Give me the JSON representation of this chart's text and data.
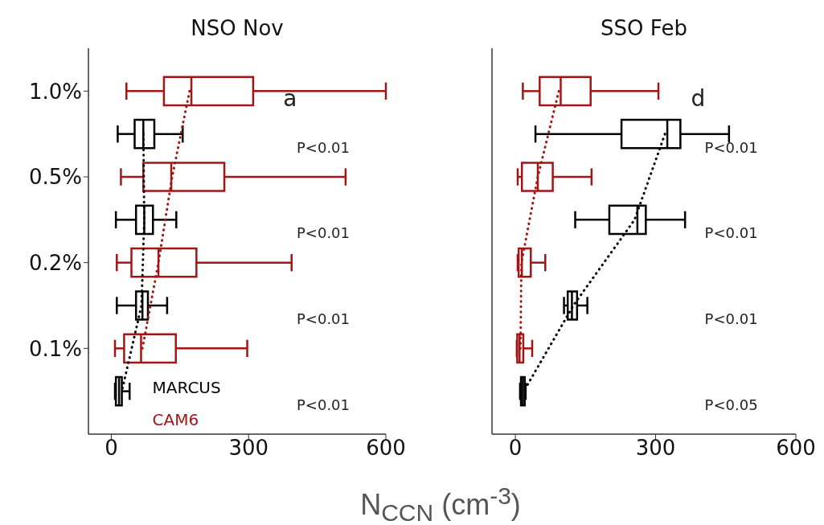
{
  "chart_data": [
    {
      "type": "box",
      "title": "NSO Nov",
      "xlabel": "N$_{CCN}$ (cm$^{-3}$)",
      "orientation": "horizontal",
      "categories": [
        "1.0%",
        null,
        "0.5%",
        null,
        "0.2%",
        null,
        "0.1%",
        null
      ],
      "xlim": [
        -50,
        600
      ],
      "xticks": [
        0,
        300,
        600
      ],
      "legend": "bottom",
      "annotations": [
        "a",
        "P<0.01",
        "P<0.01",
        "P<0.01",
        "P<0.01"
      ],
      "series": [
        {
          "name": "CAM6",
          "color": "#a31515",
          "boxes": [
            {
              "low": 33,
              "q1": 115,
              "median": 175,
              "q3": 310,
              "high": 600
            },
            null,
            {
              "low": 21,
              "q1": 70,
              "median": 131,
              "q3": 247,
              "high": 512
            },
            null,
            {
              "low": 12,
              "q1": 44,
              "median": 103,
              "q3": 186,
              "high": 394
            },
            null,
            {
              "low": 8,
              "q1": 28,
              "median": 65,
              "q3": 141,
              "high": 297
            },
            null
          ]
        },
        {
          "name": "MARCUS",
          "color": "#000000",
          "boxes": [
            null,
            {
              "low": 14,
              "q1": 51,
              "median": 70,
              "q3": 94,
              "high": 156
            },
            null,
            {
              "low": 10,
              "q1": 54,
              "median": 72,
              "q3": 91,
              "high": 142
            },
            null,
            {
              "low": 12,
              "q1": 54,
              "median": 68,
              "q3": 80,
              "high": 122
            },
            null,
            {
              "low": 8,
              "q1": 10,
              "median": 17,
              "q3": 23,
              "high": 40
            }
          ]
        },
        {
          "type": "line",
          "color": "#a31515",
          "line_style": "dotted",
          "values": [
            171,
            null,
            133,
            null,
            103,
            null,
            68,
            null
          ]
        },
        {
          "type": "line",
          "color": "#000000",
          "line_style": "dotted",
          "values": [
            null,
            70,
            null,
            72,
            null,
            66,
            null,
            23
          ]
        }
      ]
    },
    {
      "type": "box",
      "title": "SSO Feb",
      "orientation": "horizontal",
      "categories": [
        null,
        null,
        null,
        null,
        null,
        null,
        null,
        null
      ],
      "xlim": [
        -50,
        600
      ],
      "xticks": [
        0,
        300,
        600
      ],
      "tick_labels": "x",
      "annotations": [
        "d",
        "P<0.01",
        "P<0.01",
        "P<0.01",
        "P<0.05"
      ],
      "series": [
        {
          "color": "#a31515",
          "boxes": [
            {
              "low": 16,
              "q1": 52,
              "median": 97,
              "q3": 161,
              "high": 306
            },
            null,
            {
              "low": 5,
              "q1": 14,
              "median": 48,
              "q3": 80,
              "high": 163
            },
            null,
            {
              "low": 5,
              "q1": 7,
              "median": 14,
              "q3": 33,
              "high": 64
            },
            null,
            {
              "low": 3,
              "q1": 4,
              "median": 9,
              "q3": 17,
              "high": 36
            },
            null
          ]
        },
        {
          "color": "#000000",
          "boxes": [
            null,
            {
              "low": 43,
              "q1": 227,
              "median": 325,
              "q3": 353,
              "high": 457
            },
            null,
            {
              "low": 128,
              "q1": 201,
              "median": 261,
              "q3": 279,
              "high": 363
            },
            null,
            {
              "low": 104,
              "q1": 112,
              "median": 121,
              "q3": 132,
              "high": 154
            },
            null,
            {
              "low": 10,
              "q1": 12,
              "median": 16,
              "q3": 20,
              "high": 22
            }
          ]
        },
        {
          "type": "line",
          "color": "#a31515",
          "line_style": "dotted",
          "values": [
            93,
            null,
            48,
            null,
            13,
            null,
            11,
            null
          ]
        },
        {
          "type": "line",
          "color": "#000000",
          "line_style": "dotted",
          "values": [
            null,
            320,
            null,
            255,
            null,
            124,
            null,
            18
          ]
        }
      ]
    }
  ]
}
